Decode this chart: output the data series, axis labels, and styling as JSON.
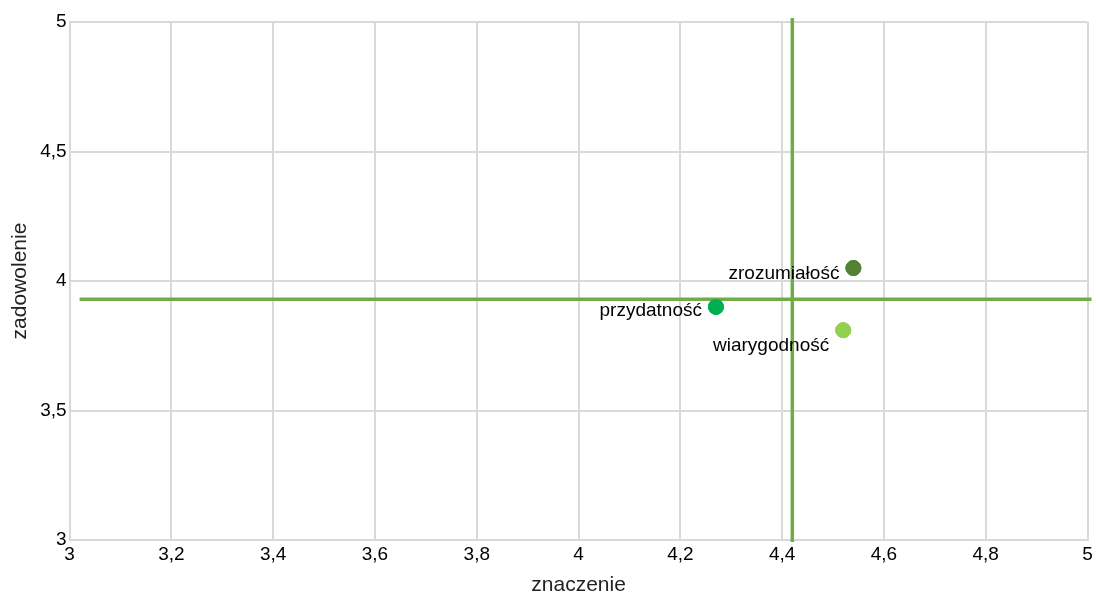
{
  "chart_data": {
    "type": "scatter",
    "xlabel": "znaczenie",
    "ylabel": "zadowolenie",
    "xlim": [
      3,
      5
    ],
    "xticks": [
      3,
      {
        "value": 3.2,
        "label": "3,2"
      },
      {
        "value": 3.4,
        "label": "3,4"
      },
      {
        "value": 3.6,
        "label": "3,6"
      },
      {
        "value": 3.8,
        "label": "3,8"
      },
      4,
      {
        "value": 4.2,
        "label": "4,2"
      },
      {
        "value": 4.4,
        "label": "4,4"
      },
      {
        "value": 4.6,
        "label": "4,6"
      },
      {
        "value": 4.8,
        "label": "4,8"
      },
      5
    ],
    "ylim": [
      3,
      5
    ],
    "yticks": [
      3,
      {
        "value": 3.5,
        "label": "3,5"
      },
      4,
      {
        "value": 4.5,
        "label": "4,5"
      },
      5
    ],
    "series": [
      {
        "name": "zrozumiałość",
        "color": "#548235",
        "x": [
          4.54
        ],
        "values": [
          4.05
        ]
      },
      {
        "name": "przydatność",
        "color": "#00b050",
        "x": [
          4.27
        ],
        "values": [
          3.9
        ]
      },
      {
        "name": "wiarygodność",
        "color": "#92d050",
        "x": [
          4.52
        ],
        "values": [
          3.81
        ]
      }
    ],
    "ref_lines": [
      {
        "axis": "x",
        "value": 4.42,
        "color": "#70ad47"
      },
      {
        "axis": "y",
        "value": 3.93,
        "color": "#70ad47"
      }
    ],
    "grid": true,
    "legend": false,
    "marker": "circle"
  }
}
